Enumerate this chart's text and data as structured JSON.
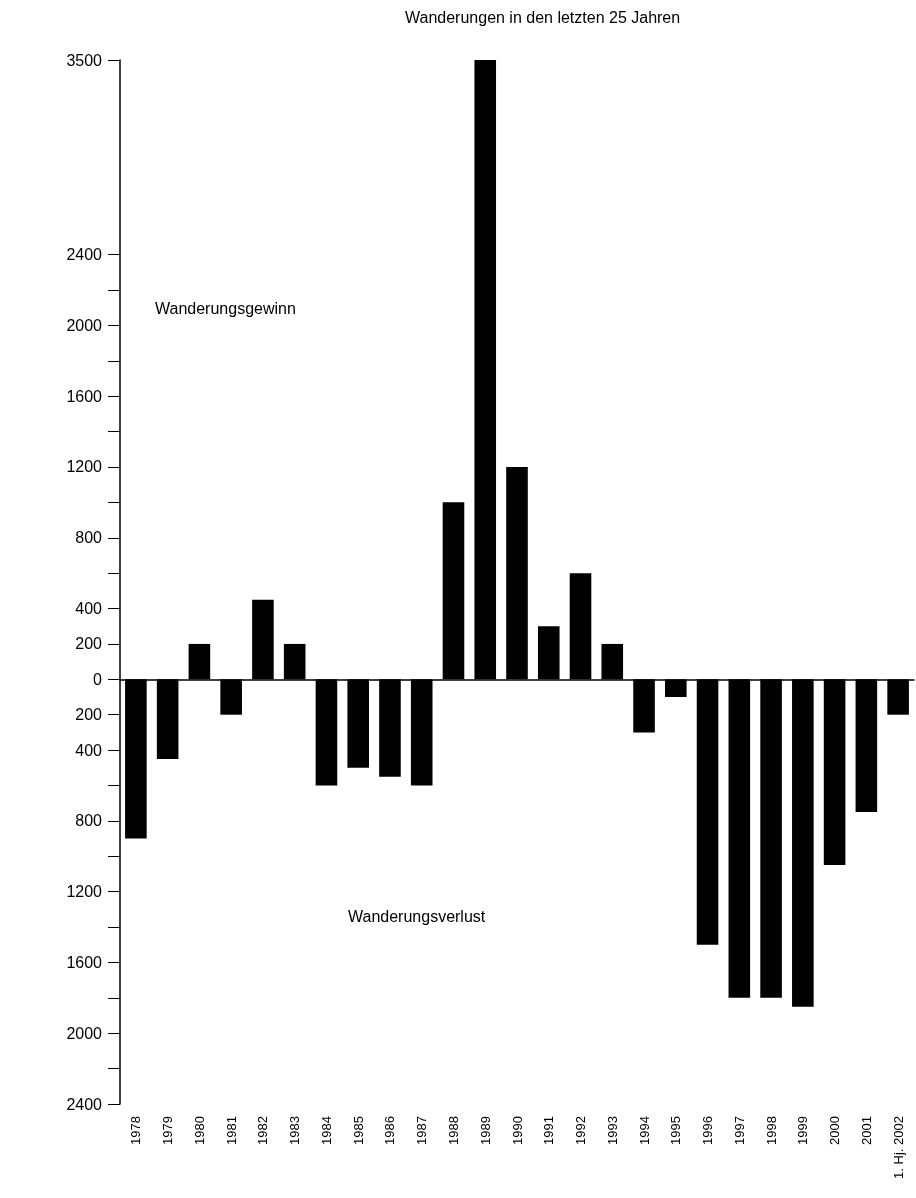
{
  "chart_data": {
    "type": "bar",
    "title": "Wanderungen in den letzten 25 Jahren",
    "categories": [
      "1978",
      "1979",
      "1980",
      "1981",
      "1982",
      "1983",
      "1984",
      "1985",
      "1986",
      "1987",
      "1988",
      "1989",
      "1990",
      "1991",
      "1992",
      "1993",
      "1994",
      "1995",
      "1996",
      "1997",
      "1998",
      "1999",
      "2000",
      "2001",
      "1. Hj. 2002"
    ],
    "values": [
      -900,
      -450,
      200,
      -200,
      450,
      200,
      -600,
      -500,
      -550,
      -600,
      1000,
      3500,
      1200,
      300,
      600,
      200,
      -300,
      -100,
      -1500,
      -1800,
      -1800,
      -1850,
      -1050,
      -750,
      -200
    ],
    "color": "#000000",
    "ylim": [
      -2400,
      3500
    ],
    "yticks": [
      {
        "value": -2400,
        "label": "2400"
      },
      {
        "value": -2200,
        "label": null
      },
      {
        "value": -2000,
        "label": "2000"
      },
      {
        "value": -1800,
        "label": null
      },
      {
        "value": -1600,
        "label": "1600"
      },
      {
        "value": -1400,
        "label": null
      },
      {
        "value": -1200,
        "label": "1200"
      },
      {
        "value": -1000,
        "label": null
      },
      {
        "value": -800,
        "label": "800"
      },
      {
        "value": -600,
        "label": null
      },
      {
        "value": -400,
        "label": "400"
      },
      {
        "value": -200,
        "label": "200"
      },
      0,
      200,
      400,
      {
        "value": 600,
        "label": null
      },
      800,
      {
        "value": 1000,
        "label": null
      },
      1200,
      {
        "value": 1400,
        "label": null
      },
      1600,
      {
        "value": 1800,
        "label": null
      },
      2000,
      {
        "value": 2200,
        "label": null
      },
      2400,
      3500
    ],
    "annotations": [
      "Wanderungsgewinn",
      "Wanderungsverlust"
    ],
    "data_labels": false
  }
}
